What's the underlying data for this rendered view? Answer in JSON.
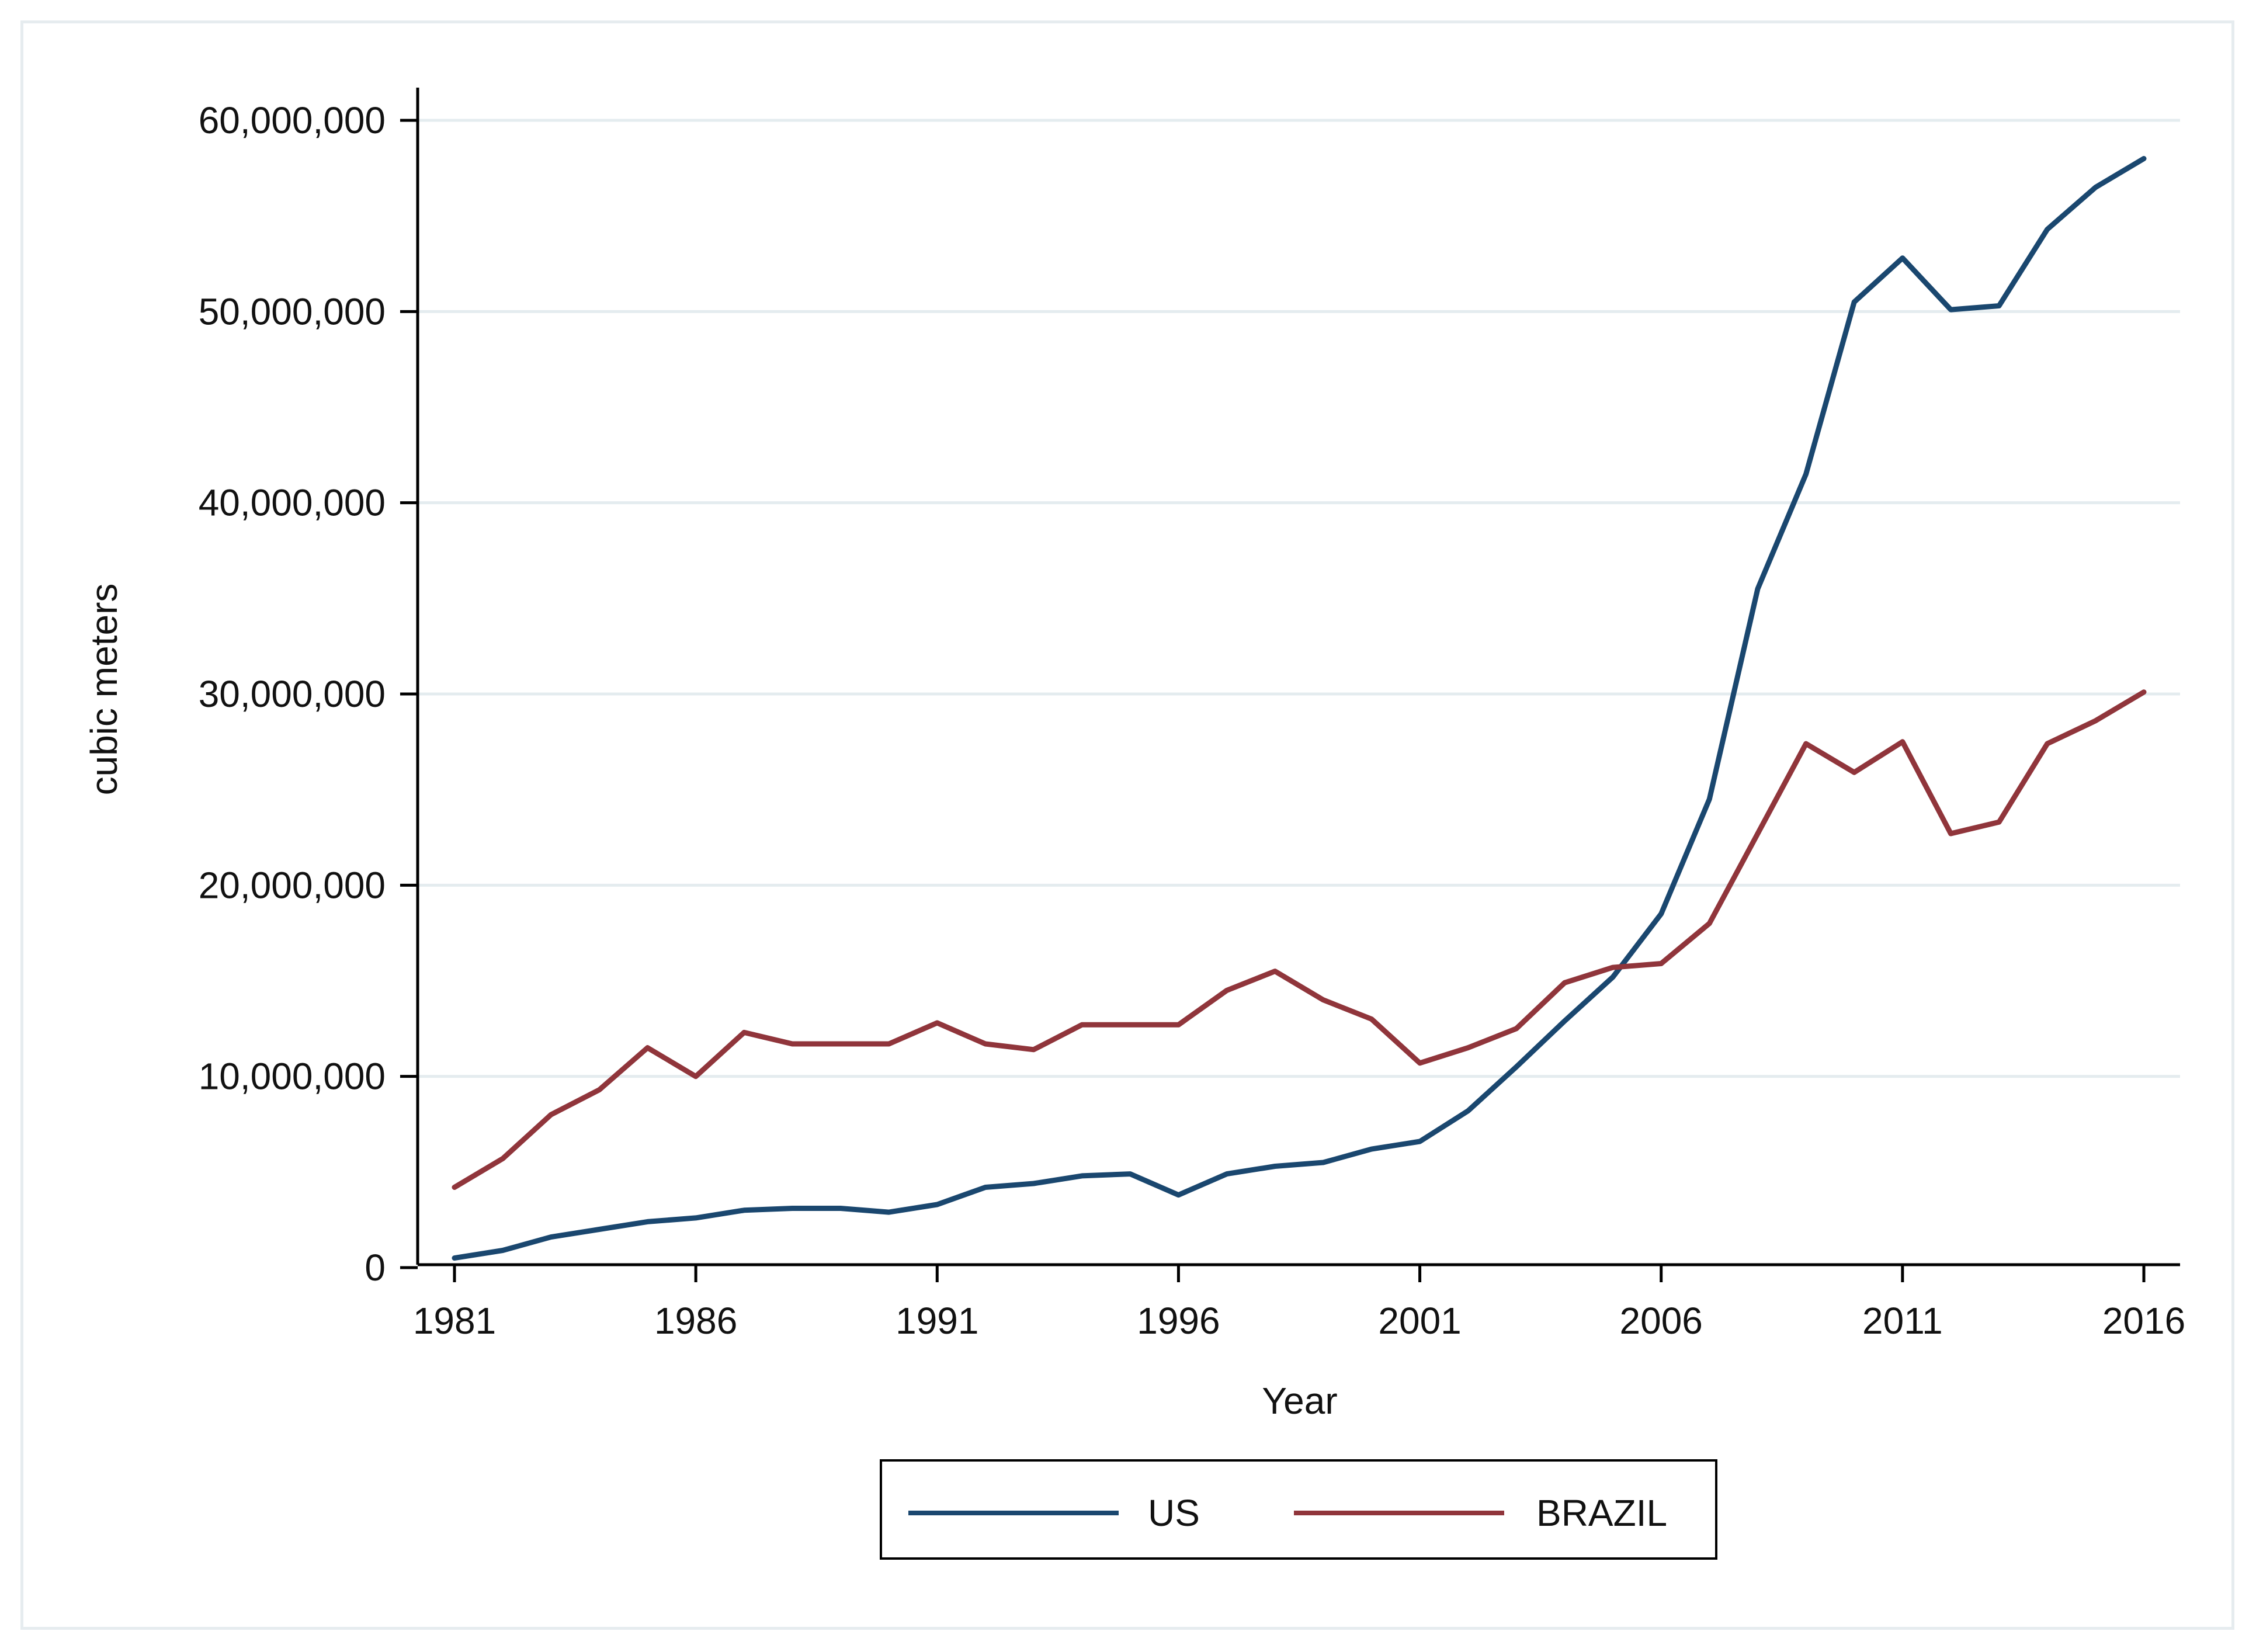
{
  "chart_data": {
    "type": "line",
    "title": "",
    "xlabel": "Year",
    "ylabel": "cubic meters",
    "xlim": [
      1981,
      2016
    ],
    "ylim": [
      0,
      60000000
    ],
    "x_ticks": [
      1981,
      1986,
      1991,
      1996,
      2001,
      2006,
      2011,
      2016
    ],
    "x_tick_labels": [
      "1981",
      "1986",
      "1991",
      "1996",
      "2001",
      "2006",
      "2011",
      "2016"
    ],
    "y_ticks": [
      0,
      10000000,
      20000000,
      30000000,
      40000000,
      50000000,
      60000000
    ],
    "y_tick_labels": [
      "0",
      "10,000,000",
      "20,000,000",
      "30,000,000",
      "40,000,000",
      "50,000,000",
      "60,000,000"
    ],
    "grid": true,
    "legend_position": "bottom",
    "x": [
      1981,
      1982,
      1983,
      1984,
      1985,
      1986,
      1987,
      1988,
      1989,
      1990,
      1991,
      1992,
      1993,
      1994,
      1995,
      1996,
      1997,
      1998,
      1999,
      2000,
      2001,
      2002,
      2003,
      2004,
      2005,
      2006,
      2007,
      2008,
      2009,
      2010,
      2011,
      2012,
      2013,
      2014,
      2015,
      2016
    ],
    "series": [
      {
        "name": "US",
        "color": "#1a476f",
        "values": [
          500000,
          900000,
          1600000,
          2000000,
          2400000,
          2600000,
          3000000,
          3100000,
          3100000,
          2900000,
          3300000,
          4200000,
          4400000,
          4800000,
          4900000,
          3800000,
          4900000,
          5300000,
          5500000,
          6200000,
          6600000,
          8200000,
          10500000,
          12900000,
          15200000,
          18500000,
          24500000,
          35500000,
          41500000,
          50500000,
          52800000,
          50100000,
          50300000,
          54300000,
          56500000,
          58000000
        ]
      },
      {
        "name": "BRAZIL",
        "color": "#90353b",
        "values": [
          4200000,
          5700000,
          8000000,
          9300000,
          11500000,
          10000000,
          12300000,
          11700000,
          11700000,
          11700000,
          12800000,
          11700000,
          11400000,
          12700000,
          12700000,
          12700000,
          14500000,
          15500000,
          14000000,
          13000000,
          10700000,
          11500000,
          12500000,
          14900000,
          15700000,
          15900000,
          18000000,
          22700000,
          27400000,
          25900000,
          27500000,
          22700000,
          23300000,
          27400000,
          28600000,
          30100000
        ]
      }
    ]
  }
}
